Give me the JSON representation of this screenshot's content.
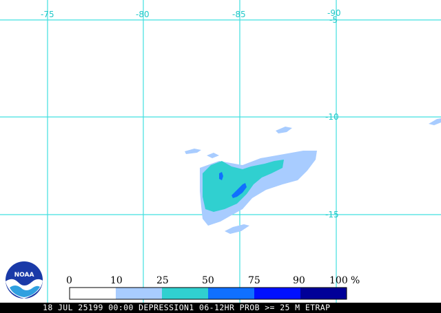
{
  "map": {
    "longitude_labels": [
      "-75",
      "-80",
      "-85",
      "-90"
    ],
    "latitude_labels": [
      "-5",
      "-10",
      "-15"
    ]
  },
  "legend": {
    "values": [
      "0",
      "10",
      "25",
      "50",
      "75",
      "90",
      "100"
    ],
    "unit": "%",
    "colors": [
      "#ffffff",
      "#a8ccff",
      "#30d0d0",
      "#1070ff",
      "#0010ff",
      "#000098"
    ]
  },
  "logo": {
    "text": "NOAA"
  },
  "footer": {
    "text": "18 JUL 25199 00:00 DEPRESSION1 06-12HR PROB >= 25 M ETRAP"
  },
  "colors": {
    "grid": "#40e0e0",
    "prob_10_25": "#a8ccff",
    "prob_25_50": "#30d0d0",
    "prob_50_75": "#1070ff",
    "prob_75_90": "#0010ff"
  }
}
